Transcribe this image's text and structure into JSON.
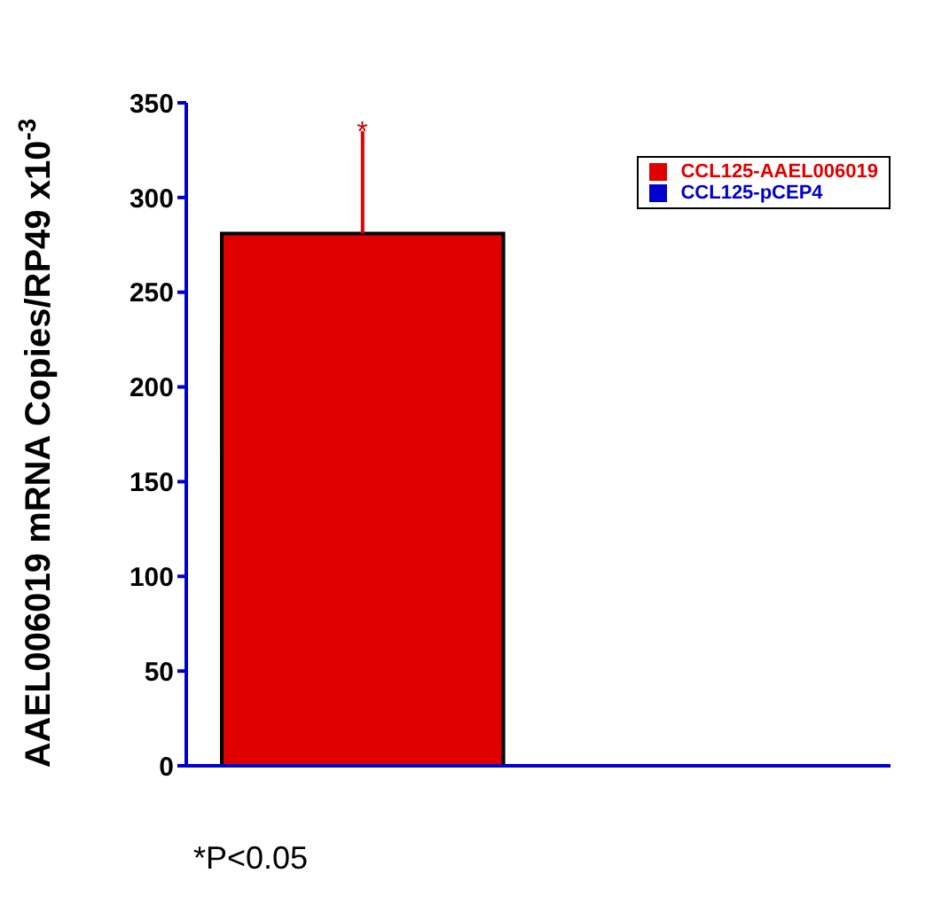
{
  "chart_data": {
    "type": "bar",
    "ylabel": "AAEL006019 mRNA Copies/RP49 x10$^{-3}$",
    "categories": [
      null,
      null
    ],
    "series": [
      {
        "name": "CCL125-AAEL006019",
        "color": "#e00000",
        "values": [
          281,
          null
        ],
        "errors": [
          [
            281,
            335
          ],
          null
        ]
      },
      {
        "name": "CCL125-pCEP4",
        "color": "#0000cc",
        "values": [
          null,
          null
        ]
      }
    ],
    "ylim": [
      0,
      350
    ],
    "yticks": [
      0,
      50,
      100,
      150,
      200,
      250,
      300,
      350
    ],
    "grid": false,
    "legend": "top right",
    "annotations": [
      {
        "text": "*",
        "y": 335
      },
      "*P<0.05"
    ]
  }
}
